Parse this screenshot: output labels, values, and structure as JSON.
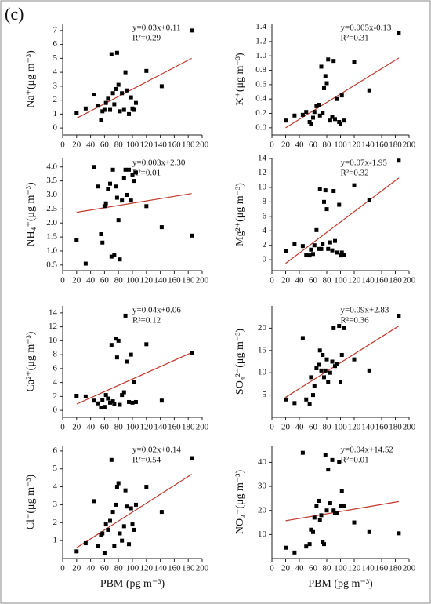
{
  "label": "(c)",
  "chart_data": [
    {
      "type": "scatter",
      "ylabel": "Na⁺(μg m⁻³)",
      "annotation": [
        "y=0.03x+0.11",
        "R²=0.29"
      ],
      "x": [
        20,
        33,
        45,
        50,
        55,
        57,
        60,
        62,
        65,
        68,
        70,
        72,
        74,
        76,
        78,
        80,
        82,
        85,
        88,
        90,
        92,
        95,
        98,
        100,
        102,
        105,
        120,
        142,
        185
      ],
      "series": [
        {
          "color": "#000000",
          "values": [
            1.1,
            1.4,
            2.4,
            1.6,
            0.6,
            1.2,
            1.3,
            1.8,
            2.1,
            1.3,
            5.3,
            2.5,
            1.7,
            2.8,
            5.4,
            3.1,
            1.2,
            2.5,
            1.3,
            4.0,
            2.7,
            1.0,
            2.2,
            1.4,
            1.3,
            1.8,
            4.1,
            3.0,
            7.0
          ]
        }
      ],
      "fit": {
        "color": "#c0392b",
        "x": [
          20,
          185
        ],
        "y": [
          0.7,
          5.0
        ]
      },
      "xlim": [
        0,
        200
      ],
      "xticks": [
        0,
        20,
        40,
        60,
        80,
        100,
        120,
        140,
        160,
        180,
        200
      ],
      "ylim": [
        -0.5,
        7.5
      ],
      "yticks": [
        0,
        1,
        2,
        3,
        4,
        5,
        6,
        7
      ]
    },
    {
      "type": "scatter",
      "ylabel": "K⁺(μg m⁻³)",
      "annotation": [
        "y=0.005x-0.13",
        "R²=0.31"
      ],
      "x": [
        20,
        33,
        45,
        50,
        55,
        57,
        60,
        62,
        65,
        68,
        70,
        72,
        74,
        76,
        78,
        80,
        82,
        85,
        88,
        90,
        92,
        95,
        98,
        100,
        102,
        105,
        120,
        142,
        185
      ],
      "series": [
        {
          "color": "#000000",
          "values": [
            0.1,
            0.17,
            0.18,
            0.22,
            0.08,
            0.05,
            0.14,
            0.22,
            0.3,
            0.32,
            0.17,
            0.85,
            0.2,
            0.55,
            0.72,
            0.62,
            0.95,
            0.1,
            0.15,
            0.93,
            0.12,
            0.4,
            0.08,
            0.05,
            0.45,
            0.1,
            0.92,
            0.52,
            1.32
          ]
        }
      ],
      "fit": {
        "color": "#c0392b",
        "x": [
          20,
          185
        ],
        "y": [
          0.0,
          0.97
        ]
      },
      "xlim": [
        0,
        200
      ],
      "xticks": [
        0,
        20,
        40,
        60,
        80,
        100,
        120,
        140,
        160,
        180,
        200
      ],
      "ylim": [
        -0.1,
        1.45
      ],
      "yticks": [
        {
          "value": 0,
          "label": "0.0"
        },
        0.2,
        0.4,
        0.6,
        0.8,
        {
          "value": 1,
          "label": "1.0"
        },
        1.2,
        1.4
      ]
    },
    {
      "type": "scatter",
      "ylabel": "NH₄⁺(μg m⁻³)",
      "annotation": [
        "y=0.003x+2.30",
        "R²=0.01"
      ],
      "x": [
        20,
        33,
        45,
        50,
        55,
        57,
        60,
        62,
        65,
        68,
        70,
        72,
        74,
        76,
        78,
        80,
        82,
        85,
        88,
        90,
        92,
        95,
        98,
        100,
        102,
        105,
        120,
        142,
        185
      ],
      "series": [
        {
          "color": "#000000",
          "values": [
            1.4,
            0.55,
            4.0,
            3.3,
            1.6,
            1.3,
            2.6,
            2.7,
            3.2,
            3.4,
            0.8,
            3.9,
            0.85,
            3.3,
            2.9,
            2.1,
            0.7,
            2.8,
            3.6,
            3.9,
            3.0,
            3.9,
            2.8,
            3.7,
            3.5,
            3.8,
            2.6,
            1.85,
            1.55
          ]
        }
      ],
      "fit": {
        "color": "#c0392b",
        "x": [
          20,
          185
        ],
        "y": [
          2.38,
          3.05
        ]
      },
      "xlim": [
        0,
        200
      ],
      "xticks": [
        0,
        20,
        40,
        60,
        80,
        100,
        120,
        140,
        160,
        180,
        200
      ],
      "ylim": [
        0.3,
        4.3
      ],
      "yticks": [
        0.5,
        {
          "value": 1,
          "label": "1.0"
        },
        1.5,
        {
          "value": 2,
          "label": "2.0"
        },
        2.5,
        {
          "value": 3,
          "label": "3.0"
        },
        3.5,
        {
          "value": 4,
          "label": "4.0"
        }
      ]
    },
    {
      "type": "scatter",
      "ylabel": "Mg²⁺(μg m⁻³)",
      "annotation": [
        "y=0.07x-1.95",
        "R²=0.32"
      ],
      "x": [
        20,
        33,
        45,
        50,
        55,
        57,
        60,
        62,
        65,
        68,
        70,
        72,
        74,
        76,
        78,
        80,
        82,
        85,
        88,
        90,
        92,
        95,
        98,
        100,
        102,
        105,
        120,
        142,
        185
      ],
      "series": [
        {
          "color": "#000000",
          "values": [
            1.2,
            2.2,
            1.9,
            0.7,
            0.6,
            1.4,
            0.8,
            2.0,
            4.1,
            1.5,
            9.8,
            1.5,
            2.2,
            8.0,
            9.6,
            7.0,
            1.5,
            2.4,
            1.3,
            9.5,
            2.6,
            1.0,
            7.6,
            0.6,
            1.0,
            0.7,
            10.3,
            8.3,
            13.7
          ]
        }
      ],
      "fit": {
        "color": "#c0392b",
        "x": [
          20,
          185
        ],
        "y": [
          -0.5,
          11.3
        ]
      },
      "xlim": [
        0,
        200
      ],
      "xticks": [
        0,
        20,
        40,
        60,
        80,
        100,
        120,
        140,
        160,
        180,
        200
      ],
      "ylim": [
        -1.5,
        14
      ],
      "yticks": [
        0,
        2,
        4,
        6,
        8,
        10,
        12,
        14
      ]
    },
    {
      "type": "scatter",
      "ylabel": "Ca²⁺(μg m⁻³)",
      "annotation": [
        "y=0.04x+0.06",
        "R²=0.12"
      ],
      "x": [
        20,
        33,
        45,
        50,
        55,
        57,
        60,
        62,
        65,
        68,
        70,
        72,
        74,
        76,
        78,
        80,
        82,
        85,
        88,
        90,
        92,
        95,
        98,
        100,
        102,
        105,
        120,
        142,
        185
      ],
      "series": [
        {
          "color": "#000000",
          "values": [
            2.1,
            2.0,
            1.4,
            1.0,
            0.4,
            1.5,
            0.5,
            2.2,
            1.7,
            1.1,
            9.4,
            1.3,
            0.9,
            10.3,
            7.6,
            10.0,
            0.8,
            2.2,
            2.6,
            13.6,
            7.0,
            1.2,
            8.0,
            1.1,
            4.1,
            1.2,
            9.5,
            1.4,
            8.3
          ]
        }
      ],
      "fit": {
        "color": "#c0392b",
        "x": [
          20,
          185
        ],
        "y": [
          0.9,
          8.3
        ]
      },
      "xlim": [
        0,
        200
      ],
      "xticks": [
        0,
        20,
        40,
        60,
        80,
        100,
        120,
        140,
        160,
        180,
        200
      ],
      "ylim": [
        -1,
        15
      ],
      "yticks": [
        0,
        2,
        4,
        6,
        8,
        10,
        12,
        14
      ]
    },
    {
      "type": "scatter",
      "ylabel": "SO₄²⁻(μg m⁻³)",
      "annotation": [
        "y=0.09x+2.83",
        "R²=0.36"
      ],
      "x": [
        20,
        33,
        45,
        50,
        55,
        57,
        60,
        62,
        65,
        68,
        70,
        72,
        74,
        76,
        78,
        80,
        82,
        85,
        88,
        90,
        92,
        95,
        98,
        100,
        102,
        105,
        120,
        142,
        185
      ],
      "series": [
        {
          "color": "#000000",
          "values": [
            4.0,
            3.2,
            17.8,
            4.0,
            3.0,
            9.0,
            5.0,
            7.0,
            11.0,
            11.8,
            15.0,
            10.5,
            14.0,
            9.0,
            10.5,
            13.0,
            8.0,
            10.0,
            12.5,
            20.0,
            11.5,
            12.0,
            20.5,
            8.0,
            14.0,
            20.0,
            13.0,
            10.5,
            22.8
          ]
        }
      ],
      "fit": {
        "color": "#c0392b",
        "x": [
          20,
          185
        ],
        "y": [
          4.5,
          20.5
        ]
      },
      "xlim": [
        0,
        200
      ],
      "xticks": [
        0,
        20,
        40,
        60,
        80,
        100,
        120,
        140,
        160,
        180,
        200
      ],
      "ylim": [
        0,
        25
      ],
      "yticks": [
        5,
        10,
        15,
        20
      ]
    },
    {
      "type": "scatter",
      "ylabel": "Cl⁻(μg m⁻³)",
      "xlabel": "PBM (pg m⁻³)",
      "annotation": [
        "y=0.02x+0.14",
        "R²=0.54"
      ],
      "x": [
        20,
        33,
        45,
        50,
        55,
        57,
        60,
        62,
        65,
        68,
        70,
        72,
        74,
        76,
        78,
        80,
        82,
        85,
        88,
        90,
        92,
        95,
        98,
        100,
        102,
        105,
        120,
        142,
        185
      ],
      "series": [
        {
          "color": "#000000",
          "values": [
            0.4,
            0.85,
            3.2,
            0.7,
            1.3,
            1.4,
            0.3,
            1.9,
            1.6,
            2.1,
            5.5,
            2.6,
            0.7,
            3.0,
            4.0,
            4.2,
            1.4,
            1.0,
            1.8,
            3.8,
            2.9,
            0.8,
            2.8,
            1.9,
            1.6,
            3.0,
            4.0,
            2.6,
            5.6
          ]
        }
      ],
      "fit": {
        "color": "#c0392b",
        "x": [
          20,
          185
        ],
        "y": [
          0.6,
          4.7
        ]
      },
      "xlim": [
        0,
        200
      ],
      "xticks": [
        0,
        20,
        40,
        60,
        80,
        100,
        120,
        140,
        160,
        180,
        200
      ],
      "ylim": [
        0,
        6.3
      ],
      "yticks": [
        1,
        2,
        3,
        4,
        5,
        6
      ]
    },
    {
      "type": "scatter",
      "ylabel": "NO₃⁻(μg m⁻³)",
      "xlabel": "PBM (pg m⁻³)",
      "annotation": [
        "y=0.04x+14.52",
        "R²=0.01"
      ],
      "x": [
        20,
        33,
        45,
        50,
        55,
        57,
        60,
        62,
        65,
        68,
        70,
        72,
        74,
        76,
        78,
        80,
        82,
        85,
        88,
        90,
        92,
        95,
        98,
        100,
        102,
        105,
        120,
        142,
        185
      ],
      "series": [
        {
          "color": "#000000",
          "values": [
            4.5,
            2.5,
            44,
            5,
            6,
            12,
            11,
            17,
            22,
            24,
            16,
            18,
            7,
            6,
            43,
            20,
            37,
            23,
            41,
            20,
            19,
            19,
            40,
            22,
            28,
            22,
            15,
            11,
            10.5
          ]
        }
      ],
      "fit": {
        "color": "#c0392b",
        "x": [
          20,
          185
        ],
        "y": [
          15.7,
          23.7
        ]
      },
      "xlim": [
        0,
        200
      ],
      "xticks": [
        0,
        20,
        40,
        60,
        80,
        100,
        120,
        140,
        160,
        180,
        200
      ],
      "ylim": [
        0,
        47
      ],
      "yticks": [
        10,
        20,
        30,
        40
      ]
    }
  ]
}
